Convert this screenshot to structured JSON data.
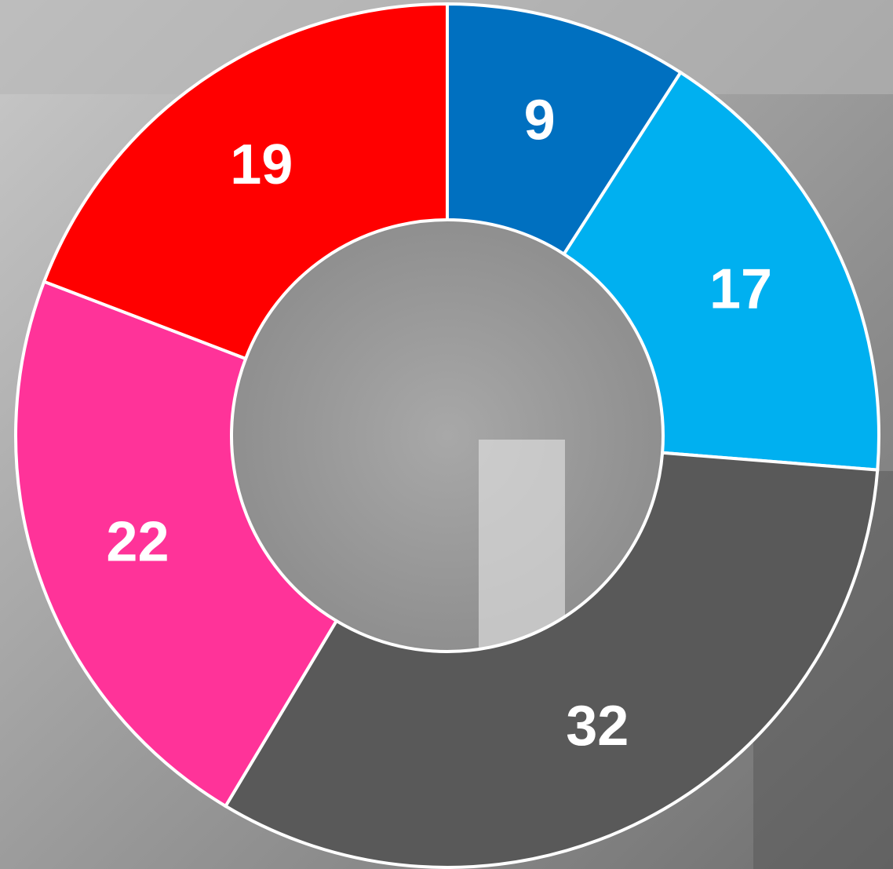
{
  "chart_data": {
    "type": "donut",
    "values": [
      9,
      17,
      32,
      22,
      19
    ],
    "colors": [
      "#0070c0",
      "#00b0f0",
      "#595959",
      "#ff3399",
      "#ff0000"
    ],
    "start_angle": 0,
    "direction": "clockwise"
  }
}
